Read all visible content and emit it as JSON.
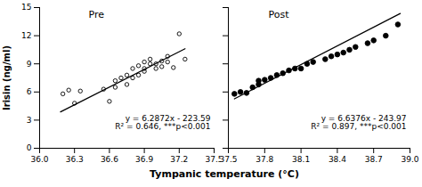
{
  "chart_data": [
    {
      "type": "scatter",
      "title": "Pre",
      "ylabel": "Irisin (ng/ml)",
      "xlabel": "Tympanic temperature (°C)",
      "x": [
        36.2,
        36.25,
        36.3,
        36.35,
        36.55,
        36.6,
        36.65,
        36.65,
        36.7,
        36.75,
        36.75,
        36.8,
        36.8,
        36.85,
        36.85,
        36.9,
        36.9,
        36.9,
        36.95,
        36.95,
        37.0,
        37.0,
        37.05,
        37.05,
        37.1,
        37.1,
        37.15,
        37.2,
        37.25
      ],
      "values": [
        5.8,
        6.2,
        4.8,
        6.1,
        6.3,
        5.0,
        6.5,
        7.2,
        7.5,
        6.8,
        7.8,
        7.5,
        8.5,
        7.8,
        8.8,
        8.2,
        8.5,
        9.2,
        9.0,
        9.5,
        8.5,
        9.0,
        9.3,
        8.7,
        9.2,
        9.8,
        8.6,
        12.2,
        9.5
      ],
      "color": "black",
      "marker": "circle-open",
      "regression": {
        "x": [
          36.18,
          37.25
        ],
        "values": [
          3.880896,
          10.6082
        ],
        "color": "black"
      },
      "annotations": [
        "y = 6.2872x - 223.59",
        "R² = 0.646, ***p<0.001"
      ],
      "xlim": [
        36.0,
        37.5
      ],
      "xticks": [
        {
          "value": 36.0,
          "label": "36.0"
        },
        36.3,
        36.6,
        36.9,
        37.2,
        37.5
      ],
      "ylim": [
        0,
        15
      ],
      "yticks": [
        0,
        3,
        6,
        9,
        12,
        15
      ],
      "grid": false
    },
    {
      "type": "scatter",
      "title": "Post",
      "x": [
        37.55,
        37.6,
        37.65,
        37.7,
        37.75,
        37.75,
        37.8,
        37.85,
        37.9,
        37.95,
        38.0,
        38.05,
        38.1,
        38.15,
        38.2,
        38.3,
        38.35,
        38.4,
        38.45,
        38.5,
        38.55,
        38.65,
        38.7,
        38.8,
        38.9
      ],
      "values": [
        5.8,
        6.0,
        5.9,
        6.5,
        6.8,
        7.2,
        7.3,
        7.5,
        7.8,
        8.0,
        8.3,
        8.5,
        8.5,
        9.0,
        9.2,
        9.5,
        9.8,
        10.0,
        10.2,
        10.5,
        10.8,
        11.2,
        11.5,
        12.0,
        13.2
      ],
      "color": "black",
      "marker": "circle",
      "regression": {
        "x": [
          37.55,
          38.92
        ],
        "values": [
          5.27188,
          14.365392
        ],
        "color": "black"
      },
      "annotations": [
        "y = 6.6376x - 243.97",
        "R² = 0.897, ***p<0.001"
      ],
      "xlim": [
        37.5,
        39.0
      ],
      "xticks": [
        37.5,
        37.8,
        38.1,
        38.4,
        38.7,
        {
          "value": 39.0,
          "label": "39.0"
        }
      ],
      "ylim": [
        0,
        15
      ],
      "yticks": [
        0,
        3,
        6,
        9,
        12,
        15
      ],
      "grid": false,
      "tick_labels": "x"
    }
  ]
}
